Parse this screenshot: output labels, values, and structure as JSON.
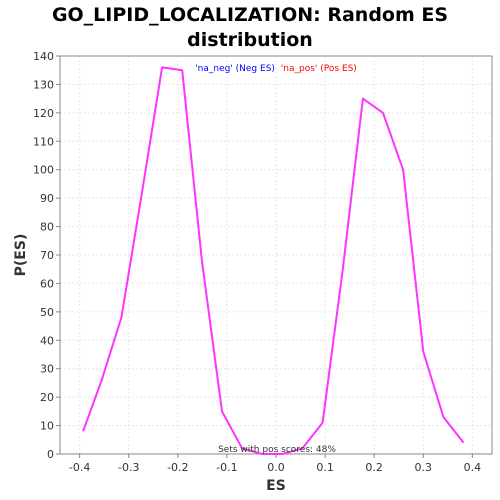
{
  "chart_data": {
    "type": "line",
    "title_line1": "GO_LIPID_LOCALIZATION: Random ES",
    "title_line2": "distribution",
    "xlabel": "ES",
    "ylabel": "P(ES)",
    "xlim": [
      -0.44,
      0.44
    ],
    "ylim": [
      0,
      140
    ],
    "xticks": [
      -0.4,
      -0.3,
      -0.2,
      -0.1,
      0.0,
      0.1,
      0.2,
      0.3,
      0.4
    ],
    "xtick_labels": [
      "-0.4",
      "-0.3",
      "-0.2",
      "-0.1",
      "0.0",
      "0.1",
      "0.2",
      "0.3",
      "0.4"
    ],
    "yticks": [
      0,
      10,
      20,
      30,
      40,
      50,
      60,
      70,
      80,
      90,
      100,
      110,
      120,
      130,
      140
    ],
    "ytick_labels": [
      "0",
      "10",
      "20",
      "30",
      "40",
      "50",
      "60",
      "70",
      "80",
      "90",
      "100",
      "110",
      "120",
      "130",
      "140"
    ],
    "grid": true,
    "legend": {
      "placement": "top-center",
      "items": [
        {
          "label": "'na_neg' (Neg ES)",
          "color": "#0000ff"
        },
        {
          "label": "'na_pos' (Pos ES)",
          "color": "#ff0000"
        }
      ]
    },
    "annotation": "Sets with pos scores: 48%",
    "series": [
      {
        "color": "#ff33ff",
        "x": [
          -0.393,
          -0.355,
          -0.315,
          -0.273,
          -0.232,
          -0.191,
          -0.151,
          -0.11,
          -0.069,
          -0.028,
          0.013,
          0.054,
          0.095,
          0.136,
          0.177,
          0.218,
          0.259,
          0.3,
          0.341,
          0.382
        ],
        "y": [
          8,
          26,
          48,
          92,
          136,
          135,
          68,
          15,
          2,
          0,
          0,
          2,
          11,
          65,
          125,
          120,
          100,
          36,
          13,
          4
        ]
      }
    ]
  }
}
